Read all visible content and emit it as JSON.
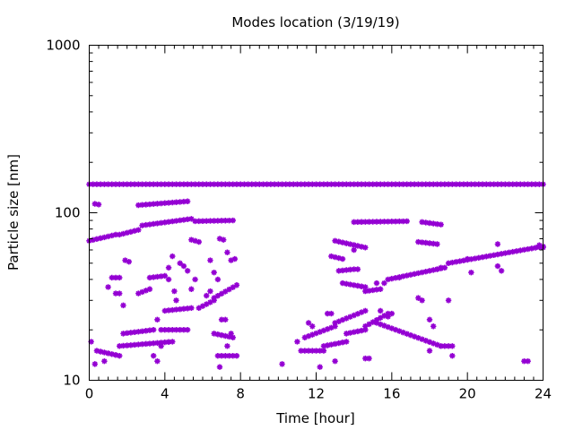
{
  "chart_data": {
    "type": "scatter",
    "title": "Modes location (3/19/19)",
    "xlabel": "Time [hour]",
    "ylabel": "Particle size [nm]",
    "xlim": [
      0,
      24
    ],
    "ylim": [
      10,
      1000
    ],
    "y_scale": "log",
    "grid": false,
    "legend": "none",
    "x_ticks": [
      0,
      4,
      8,
      12,
      16,
      20,
      24
    ],
    "x_tick_labels": [
      "0",
      "4",
      "8",
      "12",
      "16",
      "20",
      "24"
    ],
    "y_ticks": [
      10,
      100,
      1000
    ],
    "y_tick_labels": [
      "10",
      "100",
      "1000"
    ],
    "marker_color": "#9400d3",
    "marker": "star",
    "bands": [
      {
        "x_start": 0.0,
        "x_end": 24.0,
        "step": 0.2,
        "y_start": 148,
        "y_end": 148
      },
      {
        "x_start": 0.0,
        "x_end": 1.4,
        "step": 0.2,
        "y_start": 68,
        "y_end": 74
      },
      {
        "x_start": 1.6,
        "x_end": 2.6,
        "step": 0.2,
        "y_start": 74,
        "y_end": 79
      },
      {
        "x_start": 2.8,
        "x_end": 5.4,
        "step": 0.2,
        "y_start": 84,
        "y_end": 92
      },
      {
        "x_start": 5.6,
        "x_end": 7.6,
        "step": 0.2,
        "y_start": 89,
        "y_end": 90
      },
      {
        "x_start": 2.6,
        "x_end": 5.2,
        "step": 0.2,
        "y_start": 111,
        "y_end": 117
      },
      {
        "x_start": 14.0,
        "x_end": 16.8,
        "step": 0.2,
        "y_start": 88,
        "y_end": 89
      },
      {
        "x_start": 17.6,
        "x_end": 18.6,
        "step": 0.2,
        "y_start": 88,
        "y_end": 85
      },
      {
        "x_start": 13.0,
        "x_end": 14.6,
        "step": 0.2,
        "y_start": 68,
        "y_end": 62
      },
      {
        "x_start": 17.4,
        "x_end": 18.4,
        "step": 0.2,
        "y_start": 67,
        "y_end": 65
      },
      {
        "x_start": 12.8,
        "x_end": 13.4,
        "step": 0.2,
        "y_start": 55,
        "y_end": 53
      },
      {
        "x_start": 13.2,
        "x_end": 14.0,
        "step": 0.2,
        "y_start": 45,
        "y_end": 46
      },
      {
        "x_start": 13.4,
        "x_end": 14.6,
        "step": 0.2,
        "y_start": 38,
        "y_end": 36
      },
      {
        "x_start": 14.6,
        "x_end": 15.4,
        "step": 0.2,
        "y_start": 34,
        "y_end": 35
      },
      {
        "x_start": 15.8,
        "x_end": 18.8,
        "step": 0.2,
        "y_start": 40,
        "y_end": 47
      },
      {
        "x_start": 19.0,
        "x_end": 24.0,
        "step": 0.2,
        "y_start": 50,
        "y_end": 63
      },
      {
        "x_start": 0.4,
        "x_end": 1.6,
        "step": 0.2,
        "y_start": 15,
        "y_end": 14
      },
      {
        "x_start": 1.6,
        "x_end": 4.4,
        "step": 0.2,
        "y_start": 16,
        "y_end": 17
      },
      {
        "x_start": 1.8,
        "x_end": 3.4,
        "step": 0.2,
        "y_start": 19,
        "y_end": 20
      },
      {
        "x_start": 3.8,
        "x_end": 5.2,
        "step": 0.2,
        "y_start": 20,
        "y_end": 20
      },
      {
        "x_start": 4.0,
        "x_end": 5.4,
        "step": 0.2,
        "y_start": 26,
        "y_end": 27
      },
      {
        "x_start": 5.8,
        "x_end": 6.6,
        "step": 0.2,
        "y_start": 27,
        "y_end": 30
      },
      {
        "x_start": 6.6,
        "x_end": 7.8,
        "step": 0.2,
        "y_start": 31,
        "y_end": 37
      },
      {
        "x_start": 2.6,
        "x_end": 3.2,
        "step": 0.2,
        "y_start": 33,
        "y_end": 35
      },
      {
        "x_start": 3.2,
        "x_end": 4.0,
        "step": 0.2,
        "y_start": 41,
        "y_end": 42
      },
      {
        "x_start": 6.8,
        "x_end": 7.8,
        "step": 0.2,
        "y_start": 14,
        "y_end": 14
      },
      {
        "x_start": 6.6,
        "x_end": 7.6,
        "step": 0.2,
        "y_start": 19,
        "y_end": 18
      },
      {
        "x_start": 11.2,
        "x_end": 12.4,
        "step": 0.2,
        "y_start": 15,
        "y_end": 15
      },
      {
        "x_start": 12.4,
        "x_end": 13.6,
        "step": 0.2,
        "y_start": 16,
        "y_end": 17
      },
      {
        "x_start": 13.6,
        "x_end": 14.6,
        "step": 0.2,
        "y_start": 19,
        "y_end": 20
      },
      {
        "x_start": 14.6,
        "x_end": 15.8,
        "step": 0.2,
        "y_start": 21,
        "y_end": 25
      },
      {
        "x_start": 11.4,
        "x_end": 13.0,
        "step": 0.2,
        "y_start": 18,
        "y_end": 21
      },
      {
        "x_start": 13.0,
        "x_end": 14.6,
        "step": 0.2,
        "y_start": 22,
        "y_end": 26
      },
      {
        "x_start": 15.2,
        "x_end": 18.6,
        "step": 0.2,
        "y_start": 22,
        "y_end": 16
      },
      {
        "x_start": 18.6,
        "x_end": 19.2,
        "step": 0.2,
        "y_start": 16,
        "y_end": 16
      }
    ],
    "points": [
      {
        "x": 0.1,
        "y": 17
      },
      {
        "x": 0.3,
        "y": 113
      },
      {
        "x": 0.5,
        "y": 112
      },
      {
        "x": 0.3,
        "y": 12.5
      },
      {
        "x": 0.8,
        "y": 13
      },
      {
        "x": 1.0,
        "y": 36
      },
      {
        "x": 1.2,
        "y": 41
      },
      {
        "x": 1.4,
        "y": 41
      },
      {
        "x": 1.6,
        "y": 41
      },
      {
        "x": 1.4,
        "y": 33
      },
      {
        "x": 1.6,
        "y": 33
      },
      {
        "x": 1.8,
        "y": 28
      },
      {
        "x": 1.9,
        "y": 52
      },
      {
        "x": 2.1,
        "y": 51
      },
      {
        "x": 3.4,
        "y": 14
      },
      {
        "x": 3.6,
        "y": 13
      },
      {
        "x": 3.6,
        "y": 23
      },
      {
        "x": 3.8,
        "y": 16
      },
      {
        "x": 4.2,
        "y": 47
      },
      {
        "x": 4.4,
        "y": 55
      },
      {
        "x": 4.2,
        "y": 40
      },
      {
        "x": 4.5,
        "y": 34
      },
      {
        "x": 4.6,
        "y": 30
      },
      {
        "x": 4.8,
        "y": 50
      },
      {
        "x": 5.0,
        "y": 48
      },
      {
        "x": 5.2,
        "y": 45
      },
      {
        "x": 5.4,
        "y": 69
      },
      {
        "x": 5.6,
        "y": 68
      },
      {
        "x": 5.8,
        "y": 67
      },
      {
        "x": 5.4,
        "y": 35
      },
      {
        "x": 5.6,
        "y": 40
      },
      {
        "x": 6.2,
        "y": 32
      },
      {
        "x": 6.4,
        "y": 34
      },
      {
        "x": 6.4,
        "y": 52
      },
      {
        "x": 6.6,
        "y": 44
      },
      {
        "x": 6.8,
        "y": 40
      },
      {
        "x": 6.9,
        "y": 70
      },
      {
        "x": 7.1,
        "y": 69
      },
      {
        "x": 6.9,
        "y": 12
      },
      {
        "x": 7.0,
        "y": 23
      },
      {
        "x": 7.2,
        "y": 23
      },
      {
        "x": 7.3,
        "y": 58
      },
      {
        "x": 7.5,
        "y": 52
      },
      {
        "x": 7.7,
        "y": 53
      },
      {
        "x": 7.3,
        "y": 16
      },
      {
        "x": 7.5,
        "y": 19
      },
      {
        "x": 10.2,
        "y": 12.5
      },
      {
        "x": 11.0,
        "y": 17
      },
      {
        "x": 11.6,
        "y": 22
      },
      {
        "x": 11.8,
        "y": 21
      },
      {
        "x": 12.2,
        "y": 12
      },
      {
        "x": 12.6,
        "y": 25
      },
      {
        "x": 12.8,
        "y": 25
      },
      {
        "x": 13.0,
        "y": 13
      },
      {
        "x": 14.0,
        "y": 60
      },
      {
        "x": 14.2,
        "y": 46
      },
      {
        "x": 14.6,
        "y": 13.5
      },
      {
        "x": 14.8,
        "y": 13.5
      },
      {
        "x": 15.2,
        "y": 38
      },
      {
        "x": 15.6,
        "y": 38
      },
      {
        "x": 15.8,
        "y": 24
      },
      {
        "x": 16.0,
        "y": 25
      },
      {
        "x": 15.4,
        "y": 26
      },
      {
        "x": 16.4,
        "y": 41
      },
      {
        "x": 17.4,
        "y": 31
      },
      {
        "x": 17.6,
        "y": 30
      },
      {
        "x": 18.0,
        "y": 23
      },
      {
        "x": 18.2,
        "y": 21
      },
      {
        "x": 18.0,
        "y": 15
      },
      {
        "x": 18.4,
        "y": 46
      },
      {
        "x": 18.6,
        "y": 47
      },
      {
        "x": 19.0,
        "y": 30
      },
      {
        "x": 19.2,
        "y": 14
      },
      {
        "x": 20.0,
        "y": 53
      },
      {
        "x": 20.2,
        "y": 44
      },
      {
        "x": 21.6,
        "y": 65
      },
      {
        "x": 21.6,
        "y": 48
      },
      {
        "x": 21.8,
        "y": 45
      },
      {
        "x": 23.0,
        "y": 13
      },
      {
        "x": 23.2,
        "y": 13
      },
      {
        "x": 23.8,
        "y": 64
      },
      {
        "x": 24.0,
        "y": 62
      }
    ]
  }
}
